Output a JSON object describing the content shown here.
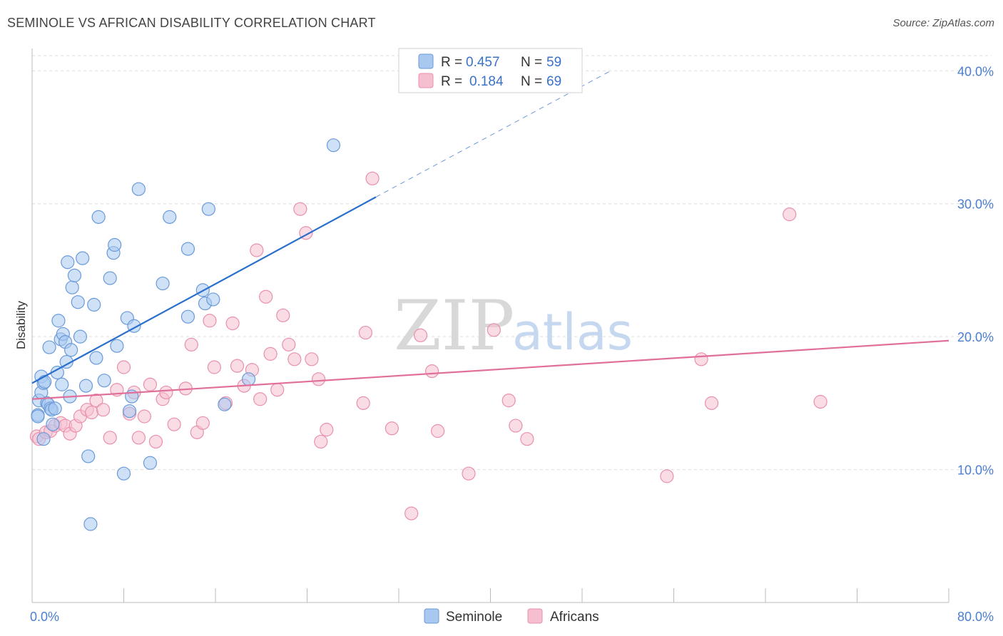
{
  "title": "SEMINOLE VS AFRICAN DISABILITY CORRELATION CHART",
  "source": "Source: ZipAtlas.com",
  "watermark": {
    "zip": "ZIP",
    "atlas": "atlas"
  },
  "legend": {
    "r_label": "R =",
    "n_label": "N =",
    "entries": [
      {
        "r": "0.457",
        "n": "59"
      },
      {
        "r": "0.184",
        "n": "69"
      }
    ]
  },
  "colors": {
    "seminole_fill": "#a8c8f0",
    "seminole_stroke": "#6a9ad8",
    "seminole_line": "#2a6fcc",
    "africans_fill": "#f6bfd0",
    "africans_stroke": "#e890ad",
    "africans_line": "#e0709a",
    "grid": "#dddddd",
    "tick_label": "#4a7fd0"
  },
  "chart_data": {
    "type": "scatter",
    "xlabel": "",
    "ylabel": "Disability",
    "xlim": [
      0,
      80
    ],
    "ylim": [
      0,
      42
    ],
    "x_tick_labels": [
      {
        "value": 0,
        "label": "0.0%"
      },
      {
        "value": 80,
        "label": "80.0%"
      }
    ],
    "y_tick_labels": [
      {
        "value": 10,
        "label": "10.0%"
      },
      {
        "value": 20,
        "label": "20.0%"
      },
      {
        "value": 30,
        "label": "30.0%"
      },
      {
        "value": 40,
        "label": "40.0%"
      }
    ],
    "grid": true,
    "legend_position": "top-center",
    "series": [
      {
        "name": "Seminole",
        "points": [
          [
            0.5,
            14.1
          ],
          [
            0.5,
            14.0
          ],
          [
            0.6,
            15.2
          ],
          [
            0.8,
            15.8
          ],
          [
            0.8,
            17.0
          ],
          [
            1.0,
            16.5
          ],
          [
            1.1,
            16.6
          ],
          [
            1.3,
            15.0
          ],
          [
            1.4,
            14.9
          ],
          [
            1.5,
            19.2
          ],
          [
            1.6,
            14.6
          ],
          [
            1.7,
            14.5
          ],
          [
            1.8,
            13.4
          ],
          [
            2.0,
            14.6
          ],
          [
            2.2,
            17.3
          ],
          [
            2.3,
            21.2
          ],
          [
            2.5,
            19.8
          ],
          [
            2.6,
            16.4
          ],
          [
            2.7,
            20.2
          ],
          [
            2.9,
            19.6
          ],
          [
            3.0,
            18.1
          ],
          [
            3.1,
            25.6
          ],
          [
            3.3,
            15.5
          ],
          [
            3.4,
            19.0
          ],
          [
            3.5,
            23.7
          ],
          [
            3.7,
            24.6
          ],
          [
            4.0,
            22.6
          ],
          [
            4.2,
            20.0
          ],
          [
            4.4,
            25.9
          ],
          [
            4.7,
            16.3
          ],
          [
            4.9,
            11.0
          ],
          [
            5.1,
            5.9
          ],
          [
            5.4,
            22.4
          ],
          [
            5.6,
            18.4
          ],
          [
            5.8,
            29.0
          ],
          [
            6.3,
            16.7
          ],
          [
            6.8,
            24.4
          ],
          [
            7.1,
            26.3
          ],
          [
            7.2,
            26.9
          ],
          [
            7.4,
            19.3
          ],
          [
            8.0,
            9.7
          ],
          [
            8.3,
            21.4
          ],
          [
            8.5,
            14.4
          ],
          [
            8.7,
            15.5
          ],
          [
            8.9,
            20.8
          ],
          [
            9.3,
            31.1
          ],
          [
            10.3,
            10.5
          ],
          [
            11.4,
            24.0
          ],
          [
            12.0,
            29.0
          ],
          [
            13.6,
            26.6
          ],
          [
            13.6,
            21.5
          ],
          [
            14.9,
            23.5
          ],
          [
            15.1,
            22.5
          ],
          [
            15.4,
            29.6
          ],
          [
            15.8,
            22.8
          ],
          [
            16.8,
            14.9
          ],
          [
            18.9,
            16.8
          ],
          [
            26.3,
            34.4
          ],
          [
            1.0,
            12.3
          ]
        ],
        "trend": {
          "x0": 0.0,
          "y0": 16.5,
          "x1": 30.0,
          "y1": 30.5,
          "dash_x1": 50.5,
          "dash_y1": 40.0
        }
      },
      {
        "name": "Africans",
        "points": [
          [
            0.4,
            12.5
          ],
          [
            0.6,
            12.3
          ],
          [
            1.2,
            12.8
          ],
          [
            1.6,
            12.9
          ],
          [
            2.0,
            13.3
          ],
          [
            2.5,
            13.5
          ],
          [
            2.9,
            13.3
          ],
          [
            3.3,
            12.7
          ],
          [
            3.8,
            13.3
          ],
          [
            4.2,
            14.0
          ],
          [
            4.8,
            14.5
          ],
          [
            5.2,
            14.3
          ],
          [
            5.6,
            15.2
          ],
          [
            6.2,
            14.5
          ],
          [
            6.8,
            12.4
          ],
          [
            7.4,
            16.0
          ],
          [
            8.0,
            17.7
          ],
          [
            8.5,
            14.2
          ],
          [
            8.9,
            15.8
          ],
          [
            9.3,
            12.4
          ],
          [
            9.8,
            14.0
          ],
          [
            10.3,
            16.4
          ],
          [
            10.8,
            12.1
          ],
          [
            11.4,
            15.3
          ],
          [
            11.7,
            15.8
          ],
          [
            12.4,
            13.4
          ],
          [
            13.4,
            16.1
          ],
          [
            13.9,
            19.4
          ],
          [
            14.4,
            12.8
          ],
          [
            14.9,
            13.5
          ],
          [
            15.5,
            21.2
          ],
          [
            15.9,
            17.7
          ],
          [
            16.9,
            15.0
          ],
          [
            17.5,
            21.0
          ],
          [
            17.9,
            17.8
          ],
          [
            18.5,
            16.3
          ],
          [
            19.2,
            17.5
          ],
          [
            19.6,
            26.5
          ],
          [
            19.9,
            15.3
          ],
          [
            20.4,
            23.0
          ],
          [
            20.8,
            18.7
          ],
          [
            21.4,
            16.0
          ],
          [
            21.9,
            21.6
          ],
          [
            22.4,
            19.4
          ],
          [
            22.9,
            18.3
          ],
          [
            23.4,
            29.6
          ],
          [
            23.9,
            27.8
          ],
          [
            24.4,
            18.3
          ],
          [
            25.0,
            16.8
          ],
          [
            25.2,
            12.1
          ],
          [
            25.7,
            13.0
          ],
          [
            28.9,
            15.0
          ],
          [
            29.1,
            20.3
          ],
          [
            29.7,
            31.9
          ],
          [
            31.4,
            13.1
          ],
          [
            33.1,
            6.7
          ],
          [
            33.9,
            20.1
          ],
          [
            34.9,
            17.4
          ],
          [
            35.4,
            12.9
          ],
          [
            38.1,
            9.7
          ],
          [
            40.3,
            20.5
          ],
          [
            41.6,
            15.2
          ],
          [
            42.2,
            13.3
          ],
          [
            43.2,
            12.3
          ],
          [
            55.4,
            9.5
          ],
          [
            58.4,
            18.3
          ],
          [
            59.3,
            15.0
          ],
          [
            66.1,
            29.2
          ],
          [
            68.8,
            15.1
          ]
        ],
        "trend": {
          "x0": 0.0,
          "y0": 15.3,
          "x1": 80.0,
          "y1": 19.7
        }
      }
    ]
  }
}
